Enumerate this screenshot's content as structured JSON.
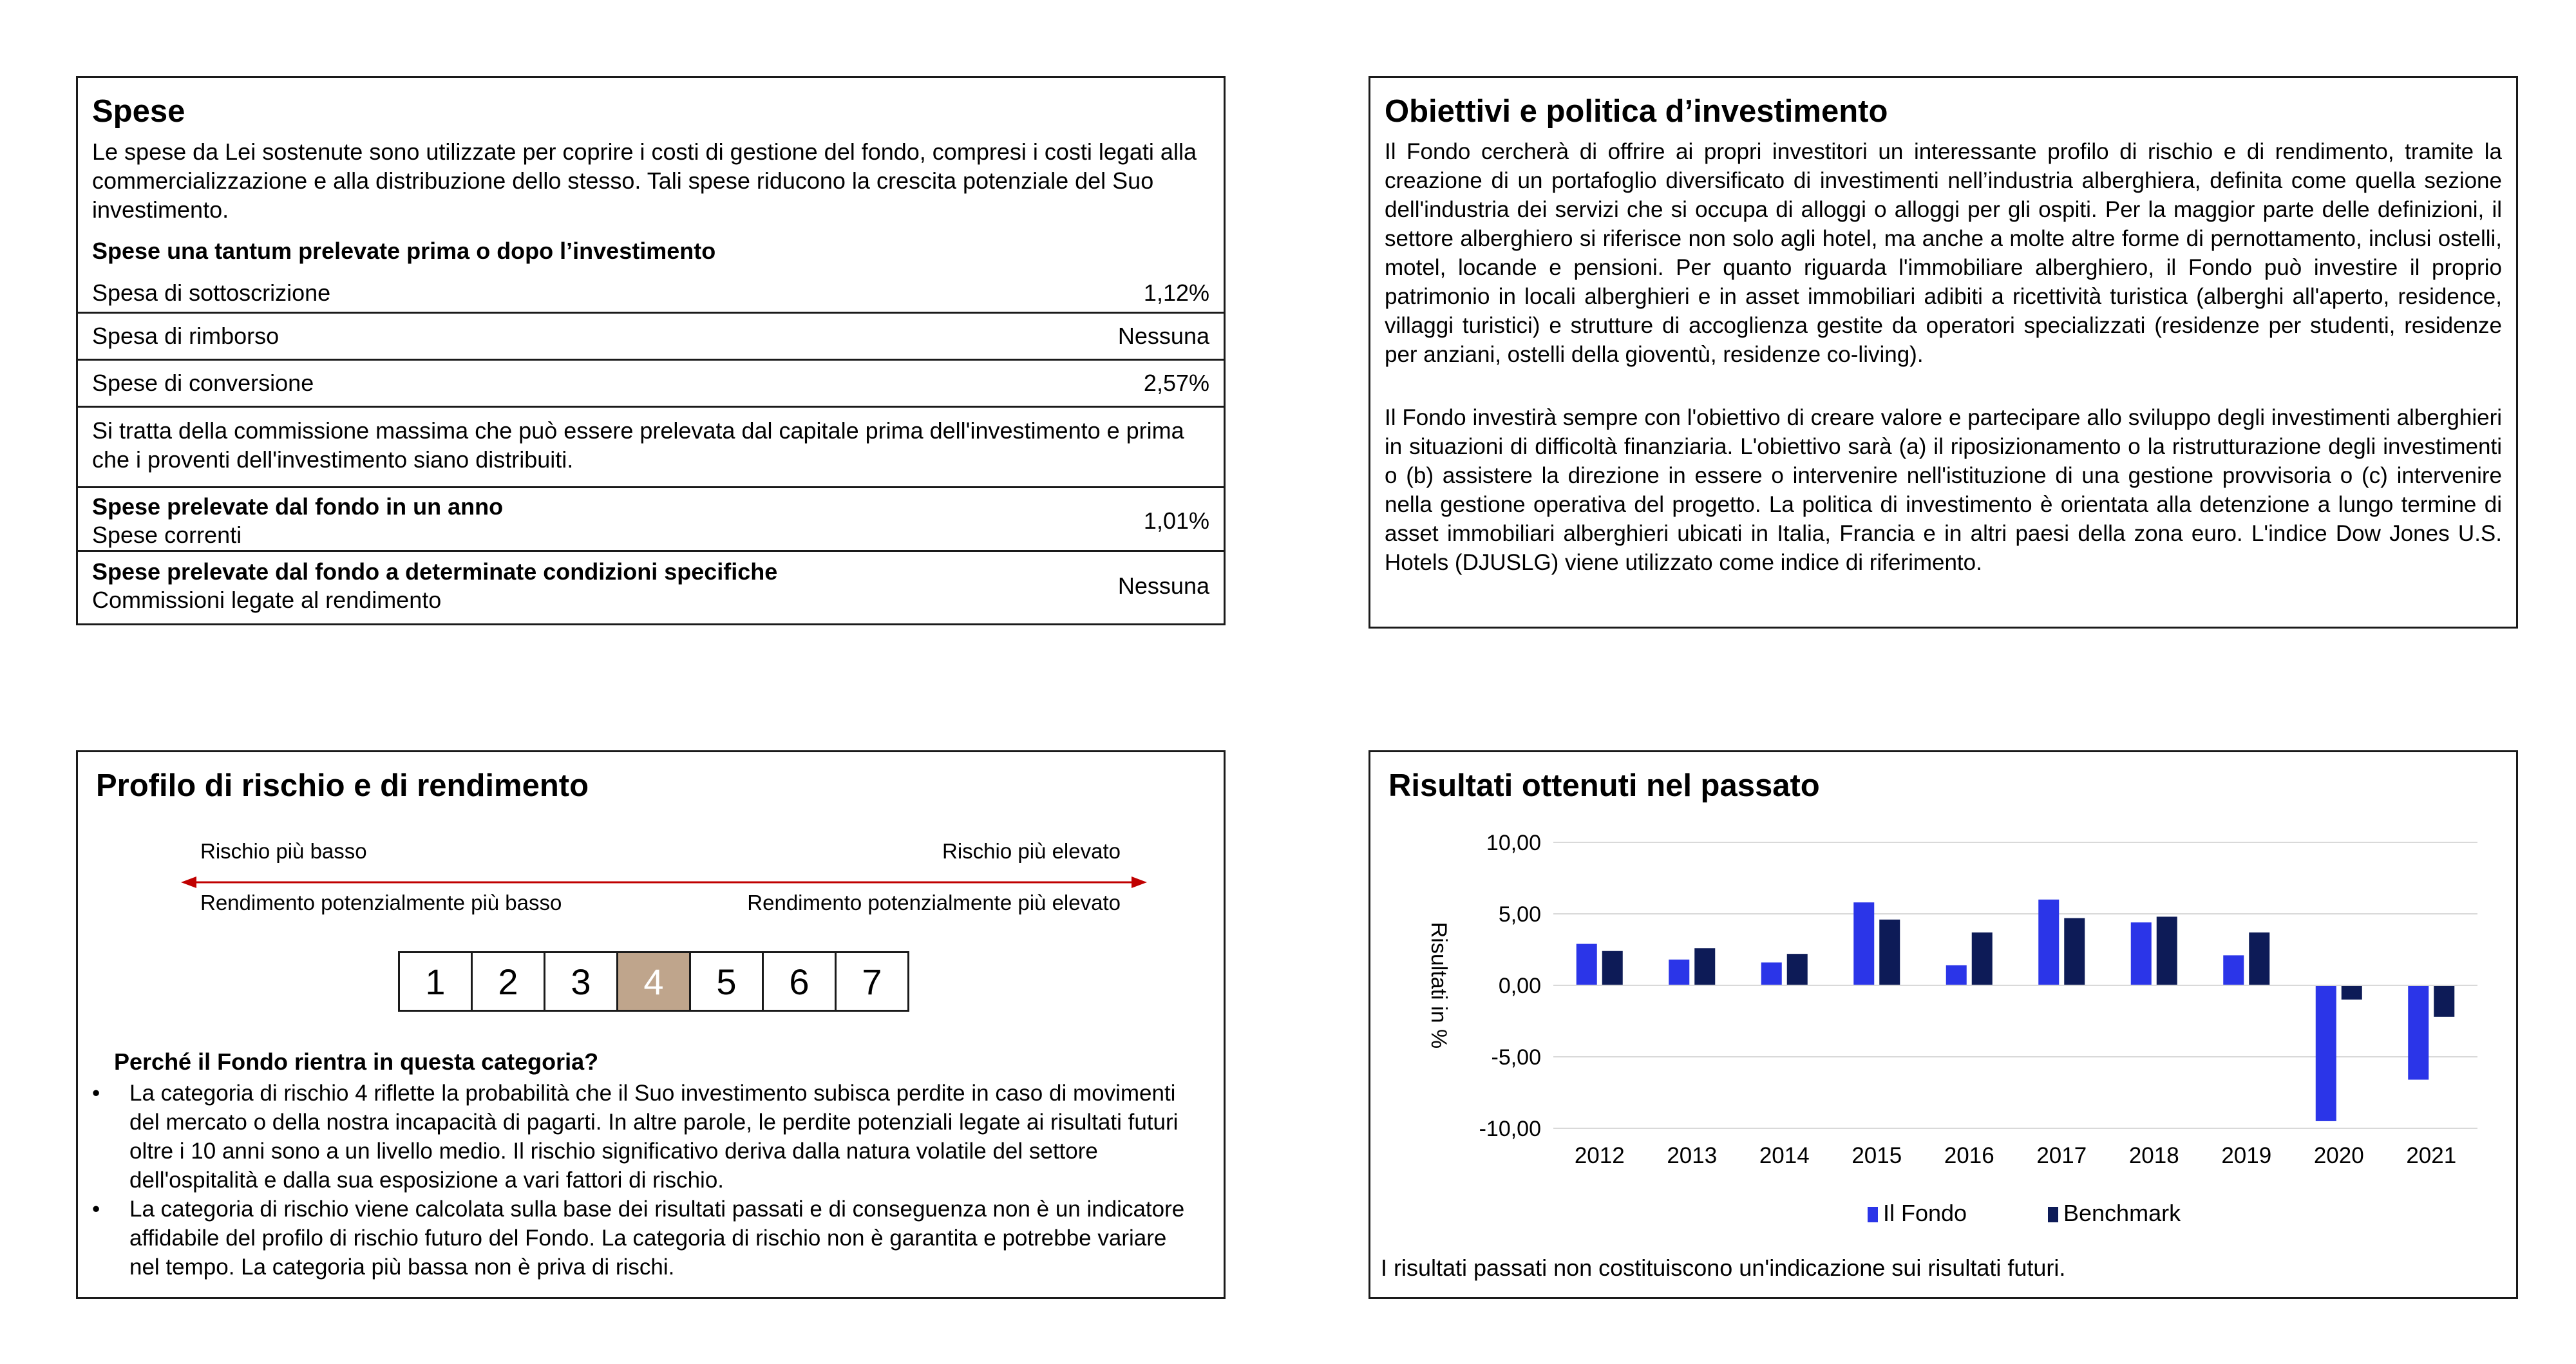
{
  "spese": {
    "title": "Spese",
    "intro": "Le spese da Lei sostenute sono utilizzate per coprire i costi di gestione del fondo, compresi i costi legati alla commercializzazione e alla distribuzione dello stesso. Tali spese riducono la crescita potenziale del Suo investimento.",
    "una_tantum_heading": "Spese una tantum prelevate prima o dopo l’investimento",
    "rows": [
      {
        "label": "Spesa di sottoscrizione",
        "value": "1,12%"
      },
      {
        "label": "Spesa di rimborso",
        "value": "Nessuna"
      },
      {
        "label": "Spese di conversione",
        "value": "2,57%"
      }
    ],
    "note": "Si tratta della commissione massima che può essere prelevata dal capitale prima dell'investimento e prima che i proventi dell'investimento siano distribuiti.",
    "annual_heading": "Spese prelevate dal fondo in un anno",
    "annual_label": "Spese correnti",
    "annual_value": "1,01%",
    "specific_heading": "Spese prelevate dal fondo a determinate condizioni specifiche",
    "specific_label": "Commissioni legate al rendimento",
    "specific_value": "Nessuna"
  },
  "obiettivi": {
    "title": "Obiettivi e politica d’investimento",
    "paragraph1": "Il Fondo cercherà di offrire ai propri investitori un interessante profilo di rischio e di rendimento, tramite la creazione di un portafoglio diversificato di investimenti nell’industria alberghiera, definita come quella sezione dell'industria dei servizi che si occupa di alloggi o alloggi per gli ospiti. Per la maggior parte delle definizioni, il settore alberghiero si riferisce non solo agli hotel, ma anche a molte altre forme di pernottamento, inclusi ostelli, motel, locande e pensioni. Per quanto riguarda l'immobiliare alberghiero, il Fondo può investire il proprio patrimonio in locali alberghieri e in asset immobiliari adibiti a ricettività turistica (alberghi all'aperto, residence, villaggi turistici) e strutture di accoglienza gestite da operatori specializzati (residenze per studenti, residenze per anziani, ostelli della gioventù, residenze co-living).",
    "paragraph2": "Il Fondo investirà sempre con l'obiettivo di creare valore e partecipare allo sviluppo degli investimenti alberghieri in situazioni di difficoltà finanziaria. L'obiettivo sarà (a) il riposizionamento o la ristrutturazione degli investimenti o (b) assistere la direzione in essere o intervenire nell'istituzione di una gestione provvisoria o (c) intervenire nella gestione operativa del progetto. La politica di investimento è orientata alla detenzione a lungo termine di asset immobiliari alberghieri ubicati in Italia, Francia e in altri paesi della zona euro. L'indice Dow Jones U.S. Hotels (DJUSLG) viene utilizzato come indice di riferimento."
  },
  "profilo": {
    "title": "Profilo di rischio e di rendimento",
    "risk_low": "Rischio più basso",
    "risk_high": "Rischio più elevato",
    "return_low": "Rendimento potenzialmente più basso",
    "return_high": "Rendimento potenzialmente più elevato",
    "arrow_color": "#c00000",
    "scale": [
      "1",
      "2",
      "3",
      "4",
      "5",
      "6",
      "7"
    ],
    "selected": "4",
    "selected_color": "#bfa58c",
    "why_heading": "Perché il Fondo rientra in questa categoria?",
    "bullets": [
      "La categoria di rischio 4 riflette la probabilità che il Suo investimento subisca perdite in caso di movimenti del mercato o della nostra incapacità di pagarti. In altre parole, le perdite potenziali legate ai risultati futuri oltre i 10 anni sono a un livello medio. Il rischio significativo deriva dalla natura volatile del settore dell'ospitalità e dalla sua esposizione a vari fattori di rischio.",
      "La categoria di rischio viene calcolata sulla base dei risultati passati e di conseguenza non è un indicatore affidabile del profilo di rischio futuro del Fondo. La categoria di rischio non è garantita e potrebbe variare nel tempo. La categoria più bassa non è priva di rischi."
    ]
  },
  "risultati": {
    "title": "Risultati ottenuti nel passato",
    "footnote": "I risultati passati non costituiscono un'indicazione sui risultati futuri."
  },
  "chart_data": {
    "type": "bar",
    "title": "Risultati ottenuti nel passato",
    "xlabel": "",
    "ylabel": "Risultati in %",
    "ylim": [
      -10,
      10
    ],
    "yticks": [
      "10,00",
      "5,00",
      "0,00",
      "-5,00",
      "-10,00"
    ],
    "ytick_values": [
      10,
      5,
      0,
      -5,
      -10
    ],
    "grid": true,
    "legend_position": "bottom",
    "categories": [
      "2012",
      "2013",
      "2014",
      "2015",
      "2016",
      "2017",
      "2018",
      "2019",
      "2020",
      "2021"
    ],
    "series": [
      {
        "name": "Il Fondo",
        "color": "#2b35e8",
        "values": [
          2.9,
          1.8,
          1.6,
          5.8,
          1.4,
          6.0,
          4.4,
          2.1,
          -9.5,
          -6.6
        ]
      },
      {
        "name": "Benchmark",
        "color": "#0d1b57",
        "values": [
          2.4,
          2.6,
          2.2,
          4.6,
          3.7,
          4.7,
          4.8,
          3.7,
          -1.0,
          -2.2
        ]
      }
    ]
  }
}
